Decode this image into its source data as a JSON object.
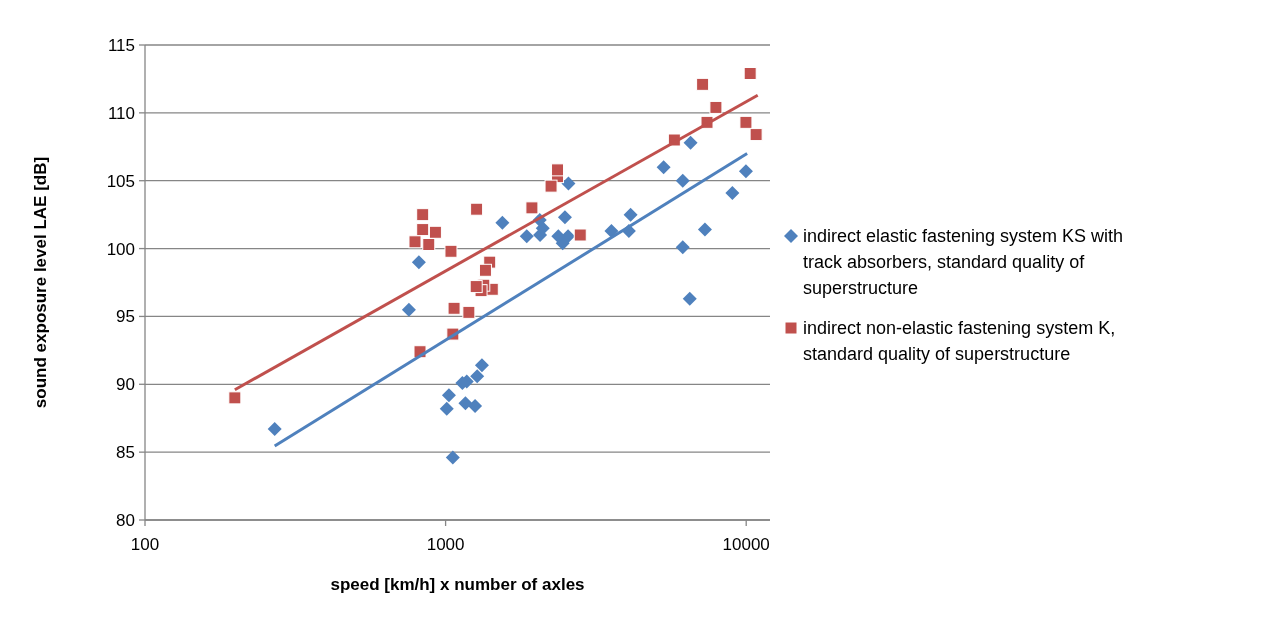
{
  "chart_data": {
    "type": "scatter",
    "xlabel": "speed [km/h] x number of axles",
    "ylabel": "sound exposure level LAE [dB]",
    "log": "x",
    "xlim": [
      100,
      12000
    ],
    "xticks": [
      100,
      1000,
      10000
    ],
    "ylim": [
      80,
      115
    ],
    "yticks": [
      80,
      85,
      90,
      95,
      100,
      105,
      110,
      115
    ],
    "grid": "y",
    "legend": "right",
    "series": [
      {
        "name": "indirect elastic fastening system KS with track absorbers, standard quality of superstructure",
        "color": "#4f81bd",
        "marker": "diamond",
        "x": [
          270,
          755,
          815,
          1057,
          1009,
          1026,
          1137,
          1176,
          1164,
          1253,
          1274,
          1321,
          1545,
          1862,
          2057,
          2105,
          2062,
          2371,
          2452,
          2495,
          2563,
          2555,
          3562,
          4125,
          4071,
          5312,
          6150,
          6150,
          6531,
          6489,
          7290,
          8995,
          9980
        ],
        "values": [
          86.7,
          95.5,
          99.0,
          84.6,
          88.2,
          89.2,
          90.1,
          90.2,
          88.6,
          88.4,
          90.6,
          91.4,
          101.9,
          100.9,
          102.1,
          101.5,
          101.0,
          100.9,
          100.4,
          102.3,
          104.8,
          100.9,
          101.3,
          102.5,
          101.3,
          106.0,
          105.0,
          100.1,
          107.8,
          96.3,
          101.4,
          104.1,
          105.7
        ]
      },
      {
        "name": "indirect non-elastic fastening system K, standard quality of superstructure",
        "color": "#c0504d",
        "marker": "square",
        "x": [
          199,
          791,
          822,
          839,
          839,
          879,
          925,
          1042,
          1067,
          1057,
          1195,
          1268,
          1264,
          1312,
          1340,
          1357,
          1402,
          1430,
          1937,
          2243,
          2357,
          2357,
          2805,
          5768,
          7161,
          7407,
          7930,
          9980,
          10310,
          10790
        ],
        "values": [
          89.0,
          100.5,
          92.4,
          102.5,
          101.4,
          100.3,
          101.2,
          99.8,
          95.6,
          93.7,
          95.3,
          102.9,
          97.2,
          96.9,
          97.3,
          98.4,
          99.0,
          97.0,
          103.0,
          104.6,
          105.8,
          105.3,
          101.0,
          108.0,
          112.1,
          109.3,
          110.4,
          109.3,
          112.9,
          108.4
        ]
      },
      {
        "type": "line",
        "color": "#4f81bd",
        "marker": "none",
        "x": [
          270,
          10070
        ],
        "values": [
          85.45,
          107.0
        ]
      },
      {
        "type": "line",
        "color": "#c0504d",
        "marker": "none",
        "x": [
          199,
          10920
        ],
        "values": [
          89.6,
          111.3
        ]
      }
    ]
  }
}
